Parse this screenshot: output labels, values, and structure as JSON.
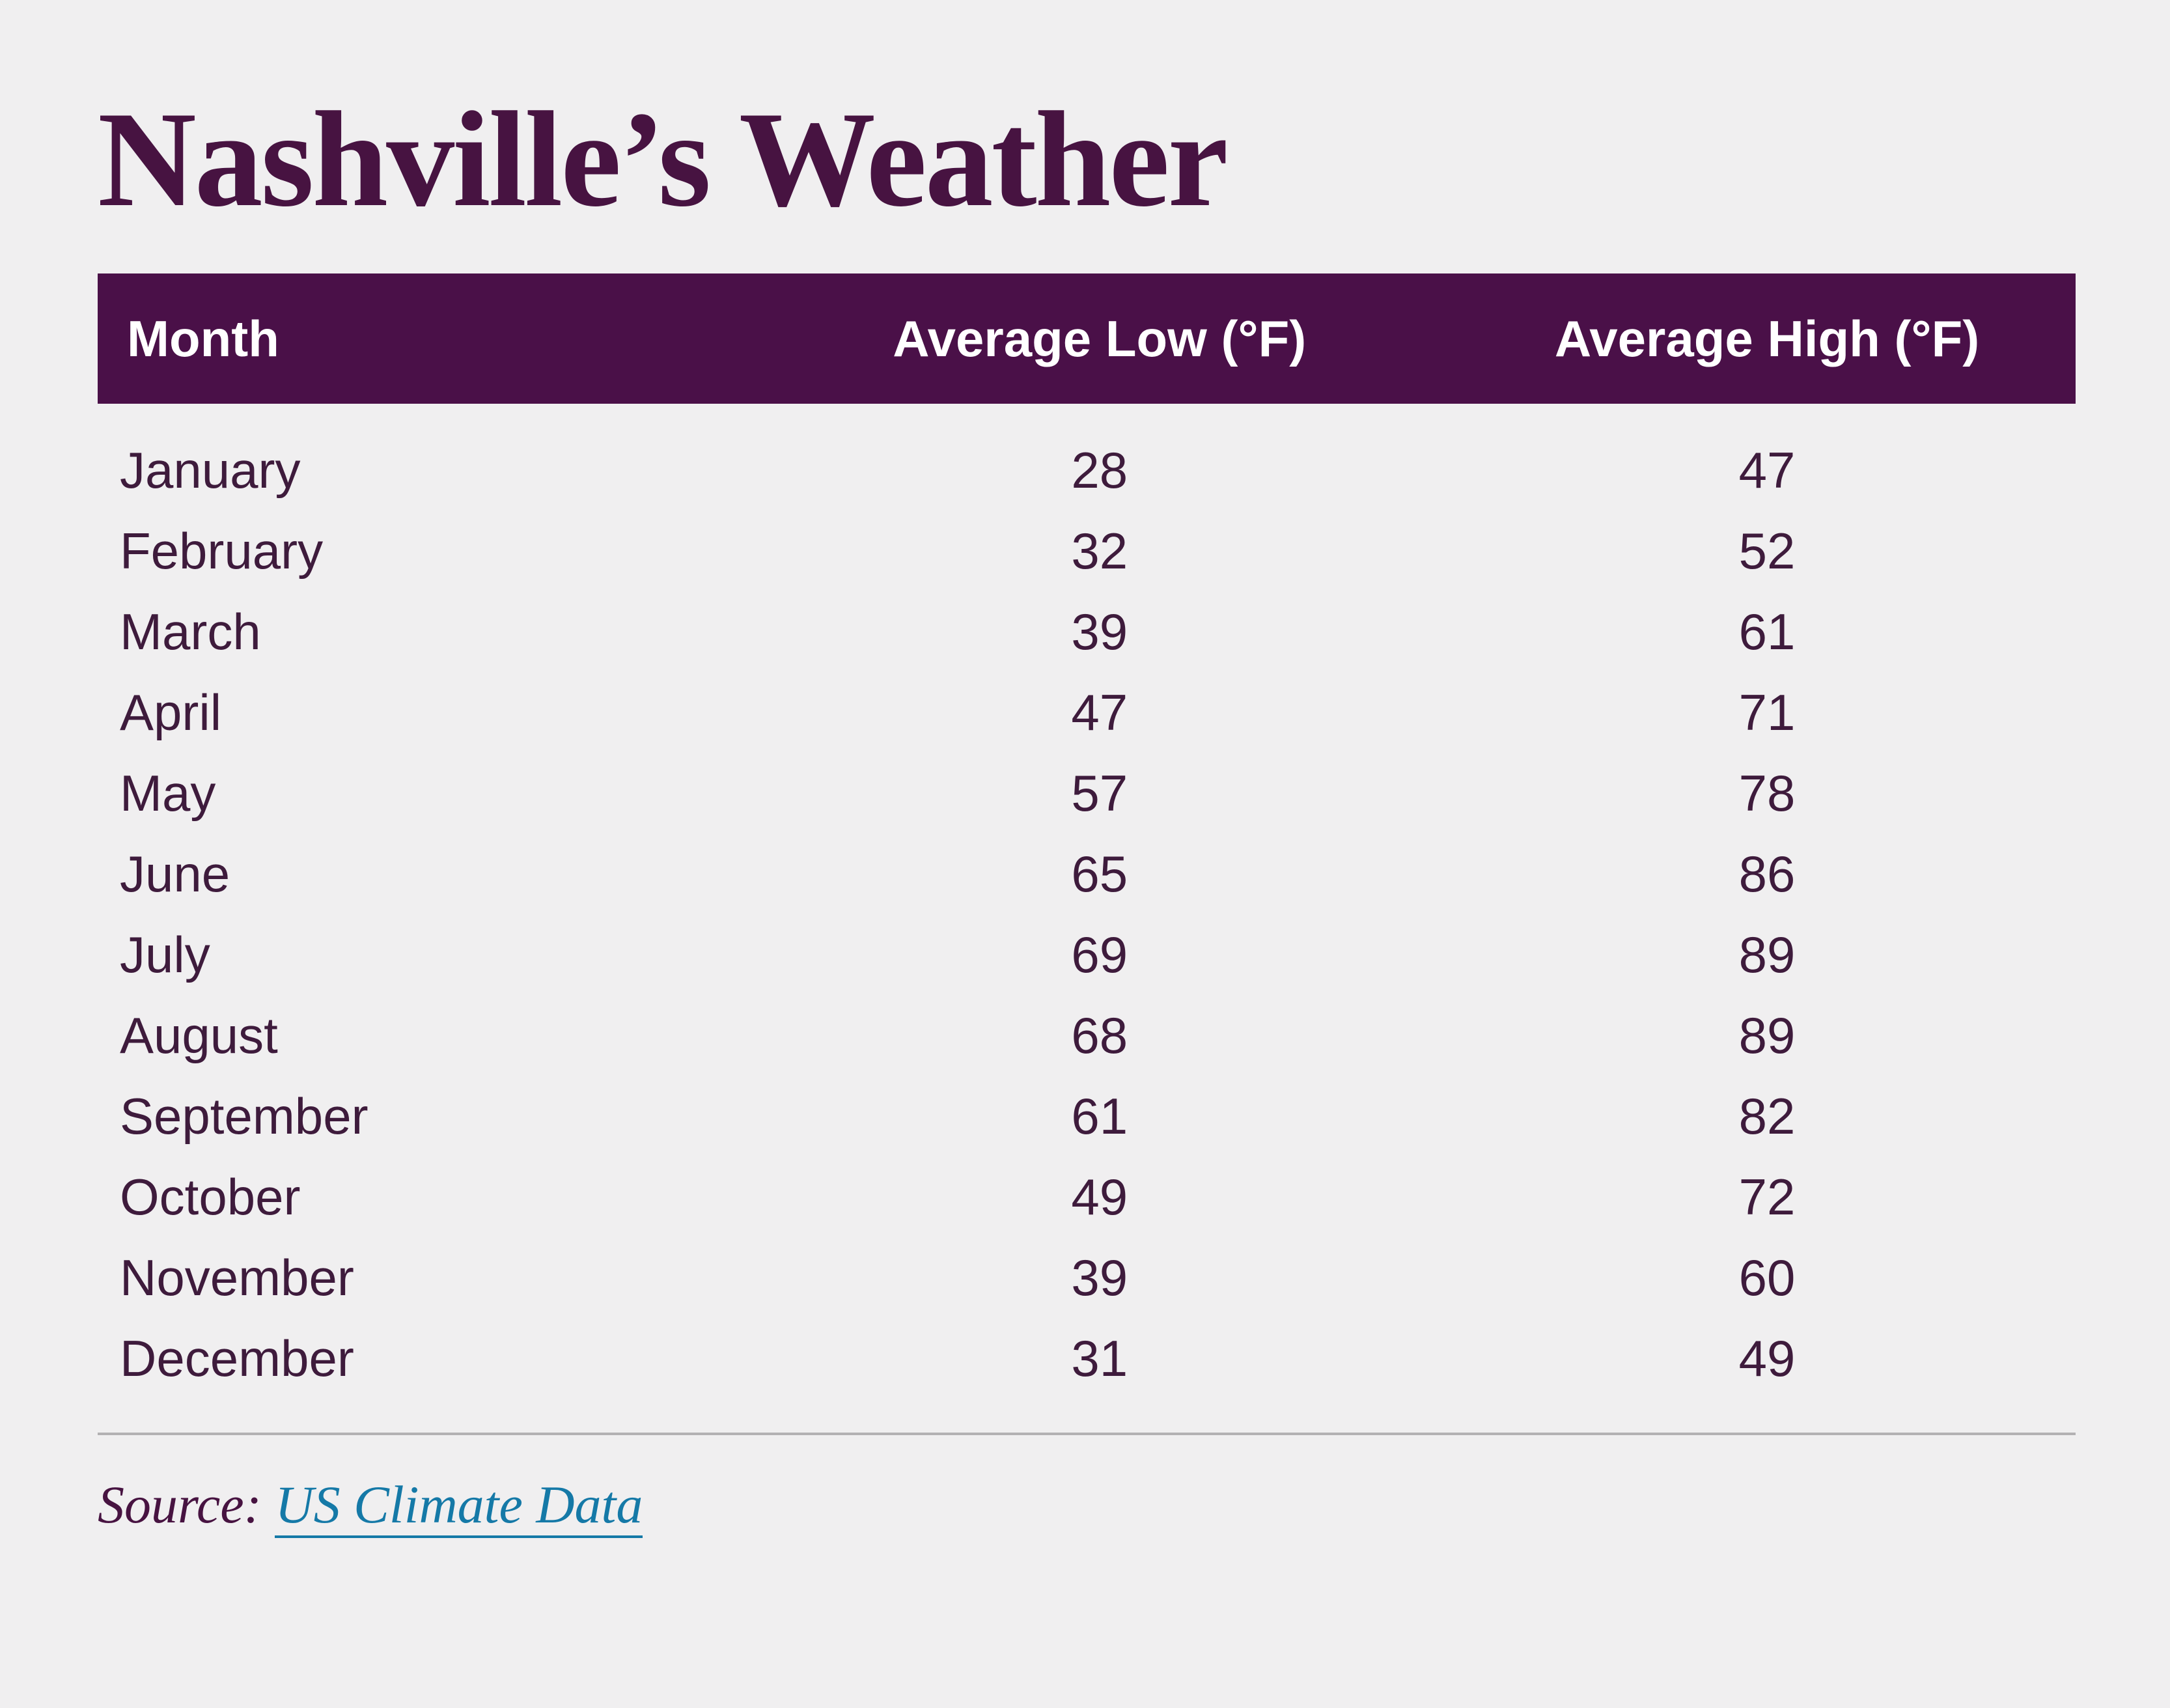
{
  "page": {
    "background_color": "#F0EFF0",
    "accent_purple": "#4A1048",
    "ink_color": "#3E1B3C",
    "divider_color": "#B3B1B3",
    "link_color": "#1579A7"
  },
  "title": {
    "text": "Nashville’s Weather"
  },
  "table": {
    "header": {
      "columns": [
        "Month",
        "Average Low (°F)",
        "Average High (°F)"
      ]
    },
    "rows": [
      {
        "month": "January",
        "low": "28",
        "high": "47"
      },
      {
        "month": "February",
        "low": "32",
        "high": "52"
      },
      {
        "month": "March",
        "low": "39",
        "high": "61"
      },
      {
        "month": "April",
        "low": "47",
        "high": "71"
      },
      {
        "month": "May",
        "low": "57",
        "high": "78"
      },
      {
        "month": "June",
        "low": "65",
        "high": "86"
      },
      {
        "month": "July",
        "low": "69",
        "high": "89"
      },
      {
        "month": "August",
        "low": "68",
        "high": "89"
      },
      {
        "month": "September",
        "low": "61",
        "high": "82"
      },
      {
        "month": "October",
        "low": "49",
        "high": "72"
      },
      {
        "month": "November",
        "low": "39",
        "high": "60"
      },
      {
        "month": "December",
        "low": "31",
        "high": "49"
      }
    ]
  },
  "source": {
    "label": "Source: ",
    "link_text": "US Climate Data"
  },
  "chart_data": {
    "type": "table",
    "title": "Nashville’s Weather",
    "categories": [
      "January",
      "February",
      "March",
      "April",
      "May",
      "June",
      "July",
      "August",
      "September",
      "October",
      "November",
      "December"
    ],
    "series": [
      {
        "name": "Average Low (°F)",
        "values": [
          28,
          32,
          39,
          47,
          57,
          65,
          69,
          68,
          61,
          49,
          39,
          31
        ]
      },
      {
        "name": "Average High (°F)",
        "values": [
          47,
          52,
          61,
          71,
          78,
          86,
          89,
          89,
          82,
          72,
          60,
          49
        ]
      }
    ],
    "legend_position": "none",
    "grid": false,
    "source": "US Climate Data"
  }
}
